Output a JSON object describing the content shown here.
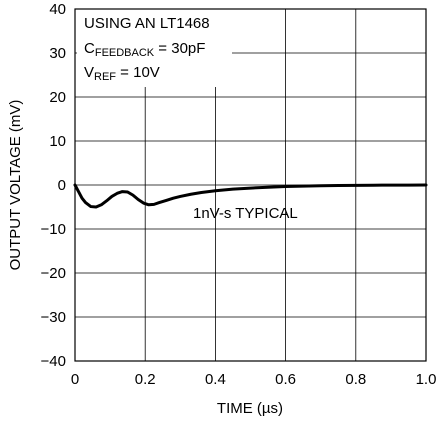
{
  "chart_data": {
    "type": "line",
    "title": "",
    "xlabel": "TIME (µs)",
    "ylabel": "OUTPUT VOLTAGE (mV)",
    "xlim": [
      0,
      1.0
    ],
    "ylim": [
      -40,
      40
    ],
    "x_ticks": [
      0,
      0.2,
      0.4,
      0.6,
      0.8,
      1.0
    ],
    "x_tick_labels": [
      "0",
      "0.2",
      "0.4",
      "0.6",
      "0.8",
      "1.0"
    ],
    "y_ticks": [
      40,
      30,
      20,
      10,
      0,
      -10,
      -20,
      -30,
      -40
    ],
    "y_tick_labels": [
      "40",
      "30",
      "20",
      "10",
      "0",
      "−10",
      "−20",
      "−30",
      "−40"
    ],
    "grid": true,
    "series": [
      {
        "x": [
          0,
          0.01,
          0.02,
          0.03,
          0.045,
          0.06,
          0.075,
          0.09,
          0.105,
          0.12,
          0.135,
          0.15,
          0.165,
          0.18,
          0.195,
          0.21,
          0.225,
          0.24,
          0.26,
          0.28,
          0.3,
          0.33,
          0.36,
          0.4,
          0.45,
          0.5,
          0.55,
          0.6,
          0.65,
          0.7,
          0.75,
          0.8,
          0.85,
          0.9,
          0.95,
          1.0
        ],
        "y": [
          0,
          -1.5,
          -3.0,
          -4.0,
          -4.9,
          -5.0,
          -4.5,
          -3.6,
          -2.6,
          -1.9,
          -1.5,
          -1.6,
          -2.3,
          -3.3,
          -4.1,
          -4.5,
          -4.4,
          -4.0,
          -3.5,
          -3.0,
          -2.6,
          -2.1,
          -1.7,
          -1.3,
          -0.95,
          -0.7,
          -0.5,
          -0.35,
          -0.25,
          -0.18,
          -0.12,
          -0.08,
          -0.05,
          -0.03,
          -0.02,
          -0.01
        ]
      }
    ],
    "annotations": {
      "line1": "USING AN LT1468",
      "line2_main": "C",
      "line2_sub": "FEEDBACK",
      "line2_rest": " = 30pF",
      "line3_main": "V",
      "line3_sub": "REF",
      "line3_rest": " = 10V",
      "curve_label": "1nV-s TYPICAL"
    }
  }
}
